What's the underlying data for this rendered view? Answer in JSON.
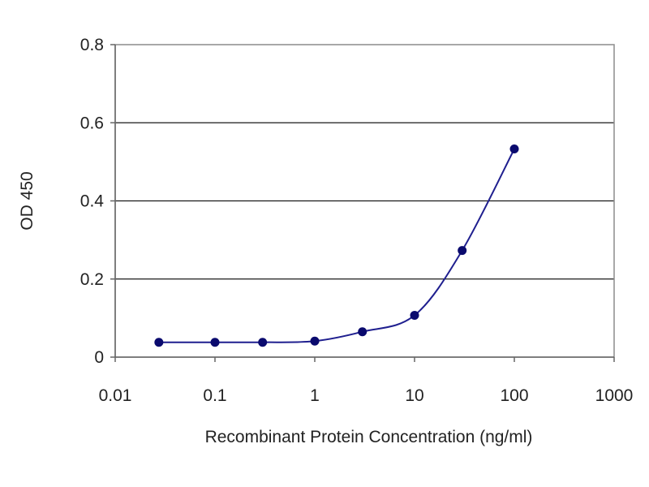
{
  "chart_data": {
    "type": "line",
    "title": "",
    "xlabel": "Recombinant Protein Concentration (ng/ml)",
    "ylabel": "OD 450",
    "x_scale": "log",
    "xlim": [
      0.01,
      1000
    ],
    "ylim": [
      0,
      0.8
    ],
    "x_ticks": [
      "0.01",
      "0.1",
      "1",
      "10",
      "100",
      "1000"
    ],
    "y_ticks": [
      "0",
      "0.2",
      "0.4",
      "0.6",
      "0.8"
    ],
    "grid": "horizontal",
    "legend": "none",
    "series": [
      {
        "color": "#1f1f8f",
        "marker_color": "#0a0a6e",
        "x": [
          0.0274,
          0.1,
          0.3,
          1,
          3,
          10,
          30,
          100
        ],
        "y": [
          0.038,
          0.038,
          0.038,
          0.041,
          0.065,
          0.107,
          0.273,
          0.533
        ]
      }
    ]
  }
}
